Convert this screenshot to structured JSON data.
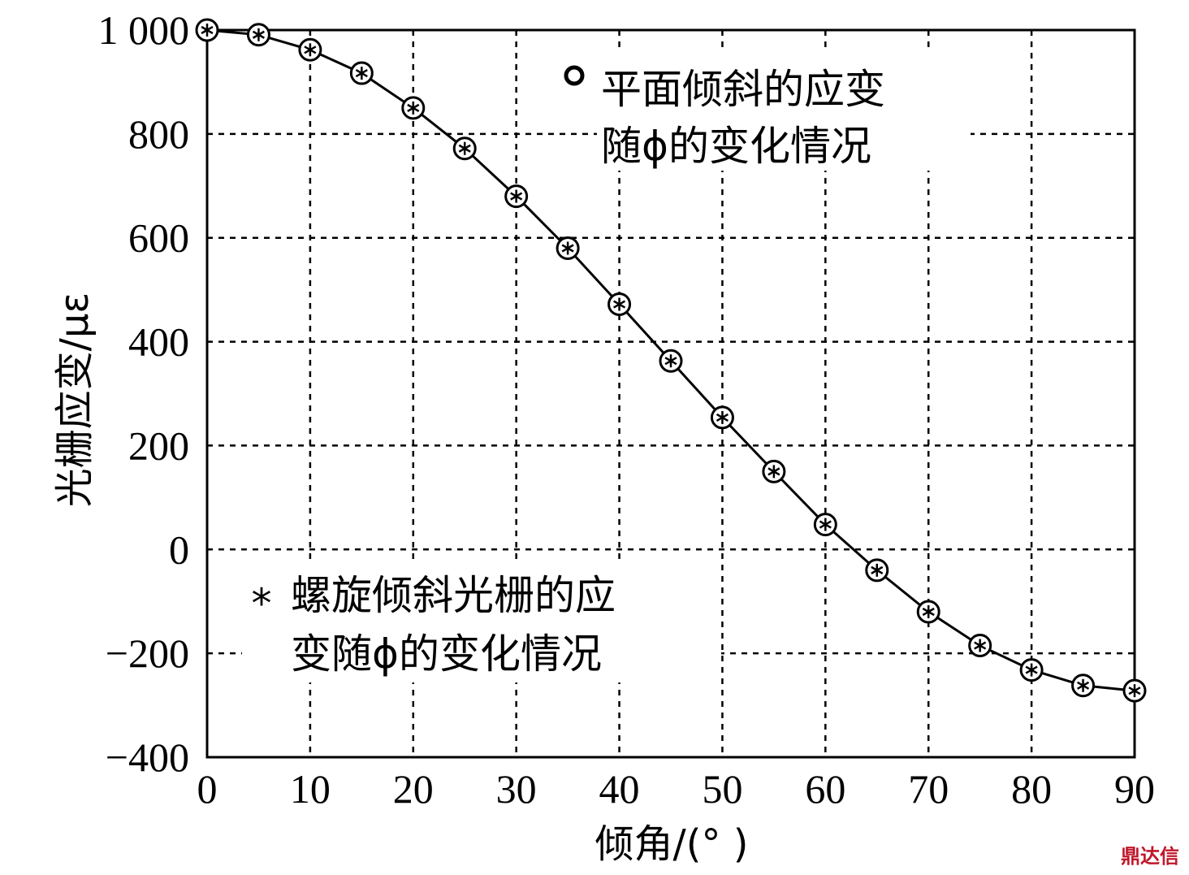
{
  "chart_data": {
    "type": "line",
    "xlabel": "倾角/(°  )",
    "ylabel": "光栅应变/με",
    "xlim": [
      0,
      90
    ],
    "ylim": [
      -400,
      1000
    ],
    "x_ticks": [
      0,
      10,
      20,
      30,
      40,
      50,
      60,
      70,
      80,
      90
    ],
    "x_tick_labels": [
      "0",
      "10",
      "20",
      "30",
      "40",
      "50",
      "60",
      "70",
      "80",
      "90"
    ],
    "y_ticks": [
      1000,
      800,
      600,
      400,
      200,
      0,
      -200,
      -400
    ],
    "y_tick_labels": [
      "1 000",
      "800",
      "600",
      "400",
      "200",
      "0",
      "−200",
      "−400"
    ],
    "grid": true,
    "x": [
      0,
      5,
      10,
      15,
      20,
      25,
      30,
      35,
      40,
      45,
      50,
      55,
      60,
      65,
      70,
      75,
      80,
      85,
      90
    ],
    "series": [
      {
        "name_lines": [
          "平面倾斜的应变",
          "随ϕ的变化情况"
        ],
        "marker": "circle",
        "values": [
          1000,
          991,
          962,
          917,
          850,
          772,
          680,
          580,
          472,
          363,
          254,
          150,
          48,
          -40,
          -120,
          -185,
          -232,
          -262,
          -272
        ]
      },
      {
        "name_lines": [
          "螺旋倾斜光栅的应",
          "变随ϕ的变化情况"
        ],
        "marker": "asterisk",
        "values": [
          1000,
          991,
          962,
          917,
          850,
          772,
          680,
          580,
          472,
          363,
          254,
          150,
          48,
          -40,
          -120,
          -185,
          -232,
          -262,
          -272
        ]
      }
    ],
    "legend": [
      {
        "symbol": "○",
        "lines": [
          "平面倾斜的应变",
          "随ϕ的变化情况"
        ],
        "position": "top-right"
      },
      {
        "symbol": "*",
        "lines": [
          "螺旋倾斜光栅的应",
          "变随ϕ的变化情况"
        ],
        "position": "bottom-left"
      }
    ]
  },
  "watermark": "鼎达信"
}
